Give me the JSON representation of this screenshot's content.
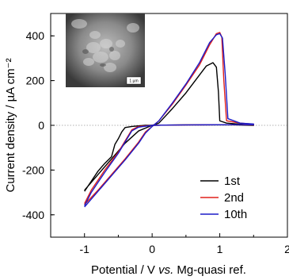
{
  "chart_data": {
    "type": "line",
    "title": "",
    "xlabel_parts": [
      "Potential / V ",
      "vs.",
      " Mg-quasi ref."
    ],
    "ylabel": "Current density / µA cm⁻²",
    "xlim": [
      -1.5,
      2.0
    ],
    "ylim": [
      -500,
      500
    ],
    "x_ticks": [
      -1,
      0,
      1,
      2
    ],
    "x_tick_labels": [
      "-1",
      "0",
      "1",
      "2"
    ],
    "y_ticks": [
      -400,
      -200,
      0,
      200,
      400
    ],
    "y_tick_labels": [
      "-400",
      "-200",
      "0",
      "200",
      "400"
    ],
    "legend_position": "bottom-right",
    "inset": {
      "description_label": "1 µm"
    },
    "series": [
      {
        "name": "1st",
        "color": "#000000",
        "points": [
          [
            -1.0,
            -295
          ],
          [
            -0.9,
            -250
          ],
          [
            -0.8,
            -205
          ],
          [
            -0.7,
            -170
          ],
          [
            -0.6,
            -140
          ],
          [
            -0.55,
            -85
          ],
          [
            -0.5,
            -60
          ],
          [
            -0.45,
            -30
          ],
          [
            -0.4,
            -10
          ],
          [
            -0.3,
            -5
          ],
          [
            -0.1,
            0
          ],
          [
            0.0,
            0
          ],
          [
            0.1,
            10
          ],
          [
            0.3,
            75
          ],
          [
            0.5,
            145
          ],
          [
            0.7,
            225
          ],
          [
            0.8,
            265
          ],
          [
            0.9,
            280
          ],
          [
            0.95,
            260
          ],
          [
            0.98,
            150
          ],
          [
            1.0,
            20
          ],
          [
            1.1,
            10
          ],
          [
            1.3,
            5
          ],
          [
            1.5,
            3
          ],
          [
            1.5,
            0
          ],
          [
            1.2,
            2
          ],
          [
            0.5,
            2
          ],
          [
            0.2,
            1
          ],
          [
            0.0,
            0
          ],
          [
            -0.2,
            -25
          ],
          [
            -0.4,
            -80
          ],
          [
            -0.6,
            -150
          ],
          [
            -0.8,
            -220
          ],
          [
            -1.0,
            -290
          ]
        ]
      },
      {
        "name": "2nd",
        "color": "#e0201b",
        "points": [
          [
            -1.0,
            -355
          ],
          [
            -0.8,
            -290
          ],
          [
            -0.6,
            -220
          ],
          [
            -0.4,
            -150
          ],
          [
            -0.2,
            -75
          ],
          [
            -0.1,
            -30
          ],
          [
            0.0,
            -5
          ],
          [
            0.1,
            20
          ],
          [
            0.3,
            95
          ],
          [
            0.5,
            180
          ],
          [
            0.7,
            270
          ],
          [
            0.85,
            360
          ],
          [
            0.95,
            410
          ],
          [
            1.0,
            415
          ],
          [
            1.03,
            395
          ],
          [
            1.06,
            200
          ],
          [
            1.1,
            20
          ],
          [
            1.3,
            10
          ],
          [
            1.5,
            5
          ],
          [
            1.5,
            2
          ],
          [
            1.2,
            3
          ],
          [
            0.6,
            2
          ],
          [
            0.2,
            1
          ],
          [
            0.0,
            0
          ],
          [
            -0.2,
            -5
          ],
          [
            -0.3,
            -20
          ],
          [
            -0.5,
            -120
          ],
          [
            -0.7,
            -200
          ],
          [
            -0.9,
            -290
          ],
          [
            -1.0,
            -350
          ]
        ]
      },
      {
        "name": "10th",
        "color": "#1c1cc8",
        "points": [
          [
            -1.0,
            -365
          ],
          [
            -0.8,
            -295
          ],
          [
            -0.6,
            -225
          ],
          [
            -0.4,
            -155
          ],
          [
            -0.2,
            -80
          ],
          [
            -0.1,
            -35
          ],
          [
            0.0,
            -5
          ],
          [
            0.1,
            20
          ],
          [
            0.3,
            100
          ],
          [
            0.5,
            185
          ],
          [
            0.7,
            280
          ],
          [
            0.85,
            370
          ],
          [
            0.95,
            405
          ],
          [
            1.0,
            410
          ],
          [
            1.04,
            390
          ],
          [
            1.08,
            230
          ],
          [
            1.12,
            30
          ],
          [
            1.3,
            10
          ],
          [
            1.5,
            6
          ],
          [
            1.5,
            3
          ],
          [
            1.2,
            3
          ],
          [
            0.6,
            2
          ],
          [
            0.2,
            1
          ],
          [
            0.0,
            0
          ],
          [
            -0.2,
            -8
          ],
          [
            -0.3,
            -25
          ],
          [
            -0.5,
            -125
          ],
          [
            -0.7,
            -210
          ],
          [
            -0.9,
            -300
          ],
          [
            -1.0,
            -360
          ]
        ]
      }
    ]
  }
}
